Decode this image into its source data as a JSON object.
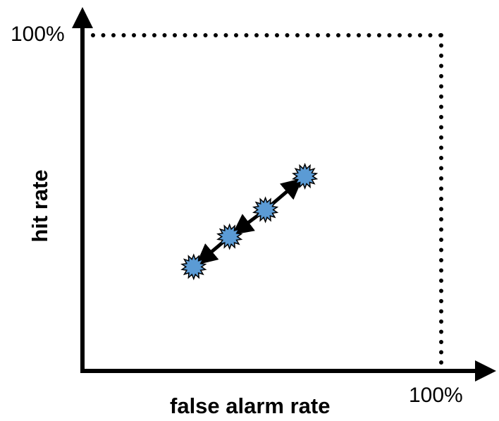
{
  "labels": {
    "y_max": "100%",
    "x_max": "100%",
    "x_axis_title": "false alarm rate",
    "y_axis_title": "hit rate"
  },
  "chart_data": {
    "type": "scatter",
    "xlabel": "false alarm rate",
    "ylabel": "hit rate",
    "xlim": [
      0,
      100
    ],
    "ylim": [
      0,
      100
    ],
    "grid": false,
    "reference_lines": [
      {
        "orientation": "horizontal",
        "y": 100,
        "style": "dotted"
      },
      {
        "orientation": "vertical",
        "x": 100,
        "style": "dotted"
      }
    ],
    "points": [
      {
        "x": 31,
        "y": 31
      },
      {
        "x": 41,
        "y": 40
      },
      {
        "x": 51,
        "y": 48
      },
      {
        "x": 62,
        "y": 58
      }
    ],
    "arrows": [
      {
        "from": 1,
        "to": 0
      },
      {
        "from": 2,
        "to": 1
      },
      {
        "from": 2,
        "to": 3
      }
    ]
  },
  "colors": {
    "axis": "#000000",
    "marker_fill": "#5b9bd5",
    "marker_stroke": "#000000"
  }
}
